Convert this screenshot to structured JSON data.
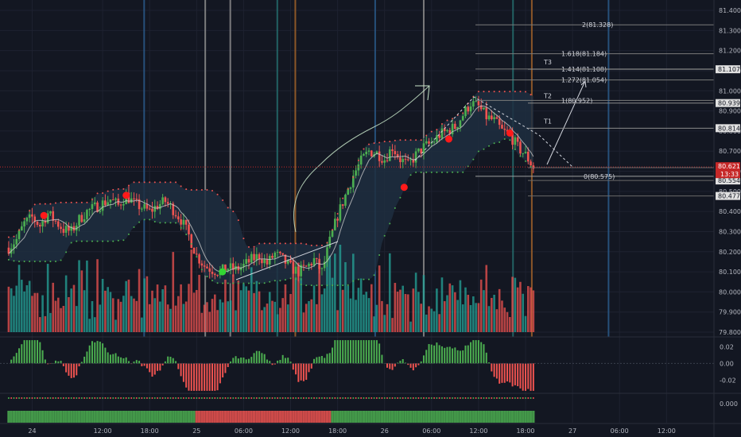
{
  "colors": {
    "background": "#131722",
    "grid": "#1e2230",
    "bull": "#26a69a",
    "bull_bright": "#4caf50",
    "bear": "#ef5350",
    "vline_blue": "#2a5a8a",
    "vline_gray": "#8c8c8c",
    "vline_orange": "#a0622a",
    "vline_teal": "#256f6f",
    "cloud": "#1f2e3f",
    "signal_red": "#ff1a1a",
    "signal_green": "#33d633",
    "current_line": "#c62828",
    "white": "#d1d4dc"
  },
  "chart_data": {
    "type": "candlestick",
    "main_panel": {
      "ylim": [
        79.7,
        81.42
      ],
      "price_ticks": [
        "81.400",
        "81.300",
        "81.200",
        "81.100",
        "81.000",
        "80.900",
        "80.800",
        "80.700",
        "80.600",
        "80.500",
        "80.400",
        "80.300",
        "80.200",
        "80.100",
        "80.000",
        "79.900",
        "79.800"
      ],
      "highlight_prices": [
        {
          "label": "81.107",
          "value": 81.107
        },
        {
          "label": "80.939",
          "value": 80.939
        },
        {
          "label": "80.814",
          "value": 80.814
        },
        {
          "label": "80.618",
          "value": 80.618
        },
        {
          "label": "80.554",
          "value": 80.554
        },
        {
          "label": "80.477",
          "value": 80.477
        }
      ],
      "current_price": {
        "label": "80.621",
        "value": 80.621,
        "countdown": "13:33"
      },
      "fib_levels": [
        {
          "ratio": "2",
          "label": "2(81.328)",
          "value": 81.328
        },
        {
          "ratio": "1.618",
          "label": "1.618(81.184)",
          "value": 81.184
        },
        {
          "ratio": "1.414",
          "label": "1.414(81.108)",
          "value": 81.108
        },
        {
          "ratio": "1.272",
          "label": "1.272(81.054)",
          "value": 81.054
        },
        {
          "ratio": "1",
          "label": "1(80.952)",
          "value": 80.952
        },
        {
          "ratio": "0",
          "label": "0(80.575)",
          "value": 80.575
        }
      ],
      "targets": [
        {
          "label": "T3",
          "value": 81.107
        },
        {
          "label": "T2",
          "value": 80.939
        },
        {
          "label": "T1",
          "value": 80.814
        }
      ]
    },
    "oscillator_panel": {
      "ylim": [
        -0.035,
        0.03
      ],
      "ticks": [
        "0.02",
        "0.00",
        "-0.02"
      ]
    },
    "trend_panel": {
      "ticks": [
        "0.000"
      ]
    },
    "time_axis": {
      "labels": [
        {
          "t": 3,
          "label": "24"
        },
        {
          "t": 12,
          "label": "12:00"
        },
        {
          "t": 18,
          "label": "18:00"
        },
        {
          "t": 24,
          "label": "25"
        },
        {
          "t": 30,
          "label": "06:00"
        },
        {
          "t": 36,
          "label": "12:00"
        },
        {
          "t": 42,
          "label": "18:00"
        },
        {
          "t": 48,
          "label": "26"
        },
        {
          "t": 54,
          "label": "06:00"
        },
        {
          "t": 60,
          "label": "12:00"
        },
        {
          "t": 66,
          "label": "18:00"
        },
        {
          "t": 72,
          "label": "27"
        },
        {
          "t": 78,
          "label": "06:00"
        },
        {
          "t": 84,
          "label": "12:00"
        }
      ],
      "t_range": [
        -0.6,
        85.4
      ]
    },
    "price_path_knots": [
      [
        0,
        80.22
      ],
      [
        1,
        80.26
      ],
      [
        2,
        80.34
      ],
      [
        3,
        80.37
      ],
      [
        4,
        80.33
      ],
      [
        5,
        80.39
      ],
      [
        6,
        80.35
      ],
      [
        7,
        80.31
      ],
      [
        8,
        80.3
      ],
      [
        9,
        80.36
      ],
      [
        10,
        80.4
      ],
      [
        11,
        80.42
      ],
      [
        12,
        80.44
      ],
      [
        13,
        80.46
      ],
      [
        14,
        80.43
      ],
      [
        15,
        80.48
      ],
      [
        16,
        80.44
      ],
      [
        17,
        80.42
      ],
      [
        18,
        80.4
      ],
      [
        19,
        80.43
      ],
      [
        20,
        80.45
      ],
      [
        21,
        80.41
      ],
      [
        22,
        80.36
      ],
      [
        23,
        80.28
      ],
      [
        24,
        80.18
      ],
      [
        25,
        80.13
      ],
      [
        26,
        80.11
      ],
      [
        27,
        80.1
      ],
      [
        28,
        80.12
      ],
      [
        29,
        80.11
      ],
      [
        30,
        80.13
      ],
      [
        31,
        80.16
      ],
      [
        32,
        80.18
      ],
      [
        33,
        80.14
      ],
      [
        34,
        80.19
      ],
      [
        35,
        80.16
      ],
      [
        36,
        80.12
      ],
      [
        37,
        80.1
      ],
      [
        38,
        80.12
      ],
      [
        39,
        80.16
      ],
      [
        40,
        80.1
      ],
      [
        41,
        80.25
      ],
      [
        42,
        80.38
      ],
      [
        43,
        80.48
      ],
      [
        44,
        80.58
      ],
      [
        45,
        80.65
      ],
      [
        46,
        80.7
      ],
      [
        47,
        80.69
      ],
      [
        48,
        80.66
      ],
      [
        49,
        80.72
      ],
      [
        50,
        80.66
      ],
      [
        51,
        80.63
      ],
      [
        52,
        80.68
      ],
      [
        53,
        80.72
      ],
      [
        54,
        80.74
      ],
      [
        55,
        80.78
      ],
      [
        56,
        80.8
      ],
      [
        57,
        80.82
      ],
      [
        58,
        80.88
      ],
      [
        59,
        80.94
      ],
      [
        60,
        80.92
      ],
      [
        61,
        80.87
      ],
      [
        62,
        80.85
      ],
      [
        63,
        80.8
      ],
      [
        64,
        80.78
      ],
      [
        65,
        80.72
      ],
      [
        66,
        80.68
      ],
      [
        67,
        80.62
      ]
    ],
    "vertical_markers": [
      {
        "t": 17.3,
        "color": "blue"
      },
      {
        "t": 25.1,
        "color": "gray"
      },
      {
        "t": 28.3,
        "color": "gray"
      },
      {
        "t": 34.3,
        "color": "teal"
      },
      {
        "t": 36.6,
        "color": "orange"
      },
      {
        "t": 46.8,
        "color": "blue"
      },
      {
        "t": 53.0,
        "color": "gray"
      },
      {
        "t": 64.4,
        "color": "teal"
      },
      {
        "t": 66.8,
        "color": "orange"
      },
      {
        "t": 76.6,
        "color": "blue"
      }
    ],
    "signals": [
      {
        "t": 4.5,
        "price": 80.38,
        "type": "red-dot"
      },
      {
        "t": 15.0,
        "price": 80.48,
        "type": "red-dot"
      },
      {
        "t": 27.3,
        "price": 80.1,
        "type": "green-dot"
      },
      {
        "t": 50.5,
        "price": 80.52,
        "type": "red-dot"
      },
      {
        "t": 56.2,
        "price": 80.76,
        "type": "red-dot"
      },
      {
        "t": 64.0,
        "price": 80.79,
        "type": "red-dot"
      }
    ]
  }
}
